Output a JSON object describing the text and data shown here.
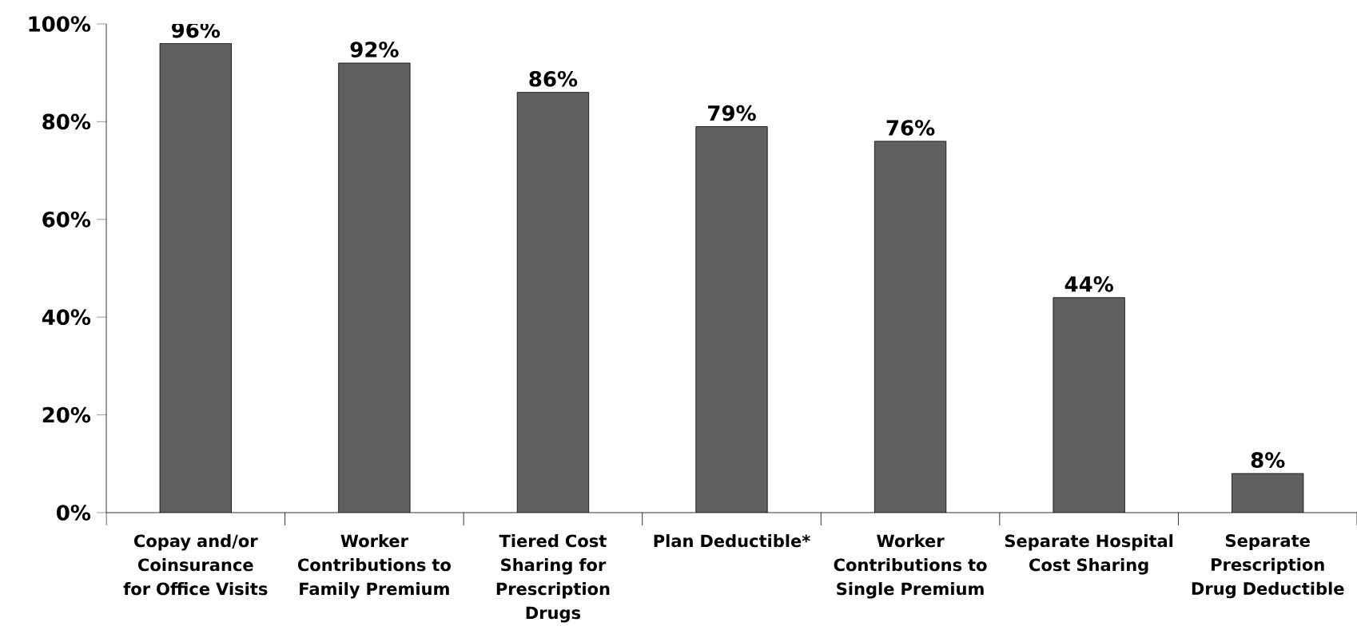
{
  "chart_data": {
    "type": "bar",
    "categories": [
      "Copay and/or Coinsurance for Office Visits",
      "Worker Contributions to Family Premium",
      "Tiered Cost Sharing for Prescription Drugs",
      "Plan Deductible*",
      "Worker Contributions to Single Premium",
      "Separate Hospital Cost Sharing",
      "Separate Prescription Drug Deductible"
    ],
    "values": [
      96,
      92,
      86,
      79,
      76,
      44,
      8
    ],
    "value_labels": [
      "96%",
      "92%",
      "86%",
      "79%",
      "76%",
      "44%",
      "8%"
    ],
    "color": "#606060",
    "ylim": [
      0,
      100
    ],
    "yticks": [
      {
        "value": 0,
        "label": "0%"
      },
      {
        "value": 20,
        "label": "20%"
      },
      {
        "value": 40,
        "label": "40%"
      },
      {
        "value": 60,
        "label": "60%"
      },
      {
        "value": 80,
        "label": "80%"
      },
      {
        "value": 100,
        "label": "100%"
      }
    ],
    "grid": false
  }
}
